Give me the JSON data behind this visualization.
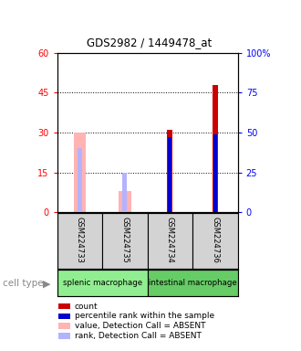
{
  "title": "GDS2982 / 1449478_at",
  "samples": [
    "GSM224733",
    "GSM224735",
    "GSM224734",
    "GSM224736"
  ],
  "absent": [
    true,
    true,
    false,
    false
  ],
  "count_values": [
    0,
    0,
    31,
    48
  ],
  "rank_values_pct": [
    0,
    0,
    47,
    49
  ],
  "absent_value_values": [
    30,
    8,
    0,
    0
  ],
  "absent_rank_pct": [
    40,
    25,
    0,
    0
  ],
  "ylim_left": [
    0,
    60
  ],
  "ylim_right": [
    0,
    100
  ],
  "yticks_left": [
    0,
    15,
    30,
    45,
    60
  ],
  "yticks_right": [
    0,
    25,
    50,
    75,
    100
  ],
  "ytick_labels_right": [
    "0",
    "25",
    "50",
    "75",
    "100%"
  ],
  "color_count": "#cc0000",
  "color_rank": "#0000cc",
  "color_absent_value": "#ffb3b3",
  "color_absent_rank": "#b3b3ff",
  "legend_items": [
    "count",
    "percentile rank within the sample",
    "value, Detection Call = ABSENT",
    "rank, Detection Call = ABSENT"
  ],
  "legend_colors": [
    "#cc0000",
    "#0000cc",
    "#ffb3b3",
    "#b3b3ff"
  ],
  "cell_type_label": "cell type",
  "group_names": [
    "splenic macrophage",
    "intestinal macrophage"
  ],
  "group_bg_splenic": "#90EE90",
  "group_bg_intestinal": "#66cc66"
}
